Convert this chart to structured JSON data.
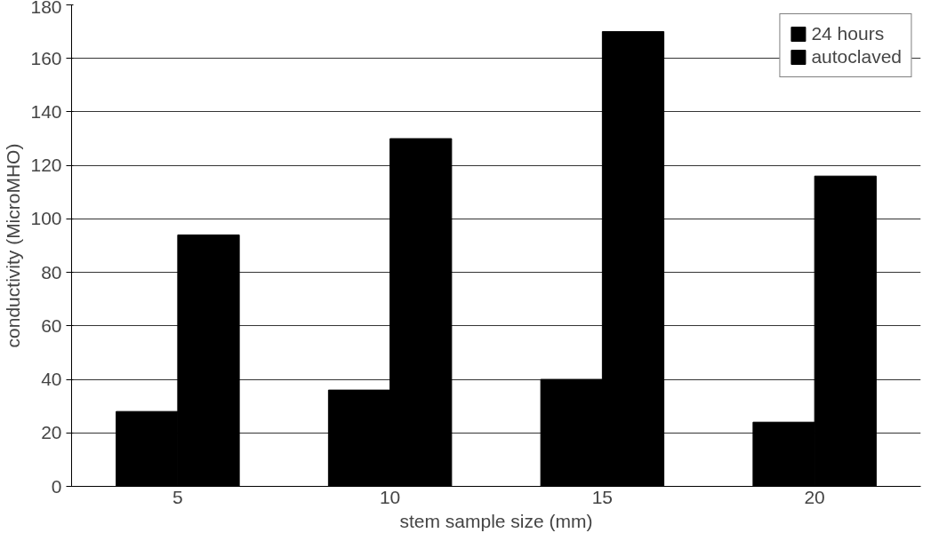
{
  "chart_data": {
    "type": "bar",
    "xlabel": "stem sample size (mm)",
    "ylabel": "conductivity (MicroMHO)",
    "categories": [
      "5",
      "10",
      "15",
      "20"
    ],
    "series": [
      {
        "name": "24 hours",
        "color": "#000000",
        "values": [
          28,
          36,
          40,
          24
        ]
      },
      {
        "name": "autoclaved",
        "color": "#000000",
        "values": [
          94,
          130,
          170,
          116
        ]
      }
    ],
    "ylim": [
      0,
      180
    ],
    "yticks": [
      0,
      20,
      40,
      60,
      80,
      100,
      120,
      140,
      160,
      180
    ],
    "grid": "y",
    "legend": "top right"
  }
}
